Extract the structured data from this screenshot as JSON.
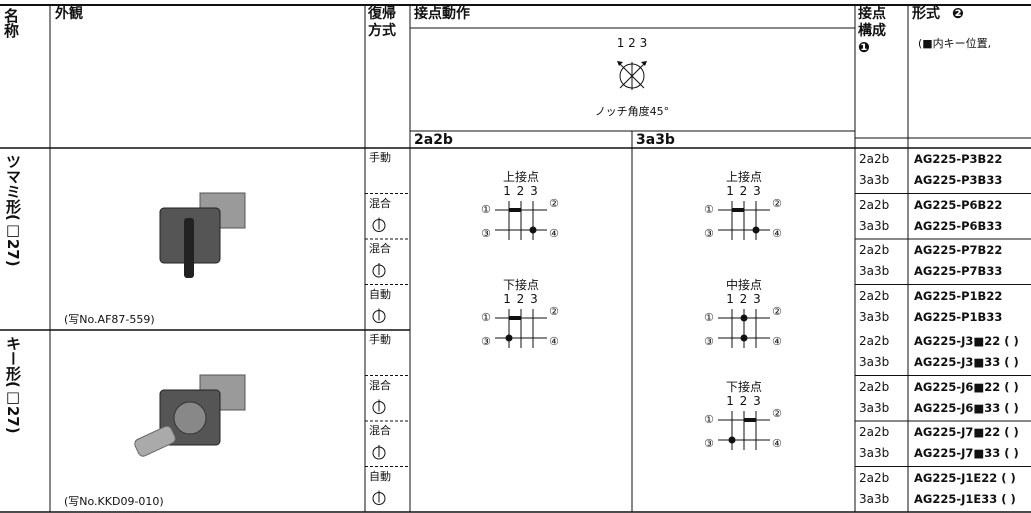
{
  "header": {
    "name": "名称",
    "appearance": "外観",
    "return": "復帰方式",
    "contact_action": "接点動作",
    "notch": "1 2 3",
    "notch_angle": "ノッチ角度45°",
    "sub": [
      "2a2b",
      "3a3b"
    ],
    "config": "接点構成",
    "config_mark": "❶",
    "model": "形式",
    "model_mark": "❷",
    "model_note": "(■内キー位置,"
  },
  "groups": [
    {
      "name": "ツマミ形(□27)",
      "caption": "(写No.AF87-559)",
      "rows": [
        {
          "return": "手動",
          "contacts": [
            {
              "config": "2a2b",
              "model": "AG225-P3B22"
            },
            {
              "config": "3a3b",
              "model": "AG225-P3B33"
            }
          ]
        },
        {
          "return": "混合",
          "contacts": [
            {
              "config": "2a2b",
              "model": "AG225-P6B22"
            },
            {
              "config": "3a3b",
              "model": "AG225-P6B33"
            }
          ]
        },
        {
          "return": "混合",
          "contacts": [
            {
              "config": "2a2b",
              "model": "AG225-P7B22"
            },
            {
              "config": "3a3b",
              "model": "AG225-P7B33"
            }
          ]
        },
        {
          "return": "自動",
          "contacts": [
            {
              "config": "2a2b",
              "model": "AG225-P1B22"
            },
            {
              "config": "3a3b",
              "model": "AG225-P1B33"
            }
          ]
        }
      ]
    },
    {
      "name": "キー形(□27)",
      "caption": "(写No.KKD09-010)",
      "rows": [
        {
          "return": "手動",
          "contacts": [
            {
              "config": "2a2b",
              "model": "AG225-J3■22 ( )"
            },
            {
              "config": "3a3b",
              "model": "AG225-J3■33 ( )"
            }
          ]
        },
        {
          "return": "混合",
          "contacts": [
            {
              "config": "2a2b",
              "model": "AG225-J6■22 ( )"
            },
            {
              "config": "3a3b",
              "model": "AG225-J6■33 ( )"
            }
          ]
        },
        {
          "return": "混合",
          "contacts": [
            {
              "config": "2a2b",
              "model": "AG225-J7■22 ( )"
            },
            {
              "config": "3a3b",
              "model": "AG225-J7■33 ( )"
            }
          ]
        },
        {
          "return": "自動",
          "contacts": [
            {
              "config": "2a2b",
              "model": "AG225-J1E22 ( )"
            },
            {
              "config": "3a3b",
              "model": "AG225-J1E33 ( )"
            }
          ]
        }
      ]
    }
  ],
  "diagrams": {
    "terminals": [
      "①",
      "②",
      "③",
      "④"
    ],
    "2a2b": [
      {
        "label": "上接点",
        "positions": "1 2 3"
      },
      {
        "label": "下接点",
        "positions": "1 2 3"
      }
    ],
    "3a3b": [
      {
        "label": "上接点",
        "positions": "1 2 3"
      },
      {
        "label": "中接点",
        "positions": "1 2 3"
      },
      {
        "label": "下接点",
        "positions": "1 2 3"
      }
    ]
  }
}
